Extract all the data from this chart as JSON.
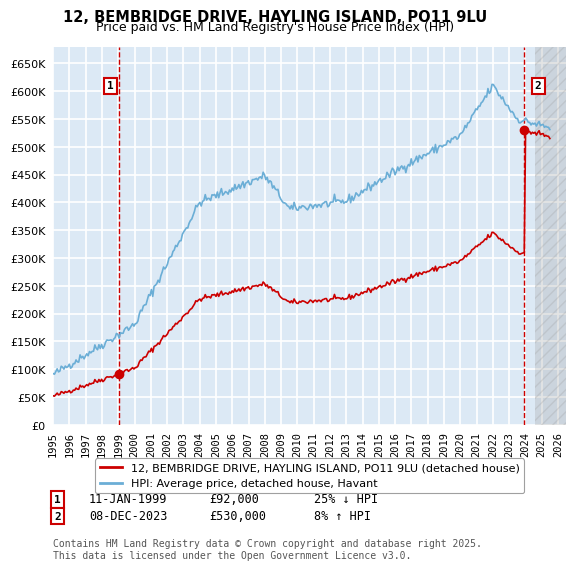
{
  "title_line1": "12, BEMBRIDGE DRIVE, HAYLING ISLAND, PO11 9LU",
  "title_line2": "Price paid vs. HM Land Registry's House Price Index (HPI)",
  "legend_line1": "12, BEMBRIDGE DRIVE, HAYLING ISLAND, PO11 9LU (detached house)",
  "legend_line2": "HPI: Average price, detached house, Havant",
  "annotation_footer": "Contains HM Land Registry data © Crown copyright and database right 2025.\nThis data is licensed under the Open Government Licence v3.0.",
  "sale1_date": "11-JAN-1999",
  "sale1_price": "£92,000",
  "sale1_hpi": "25% ↓ HPI",
  "sale2_date": "08-DEC-2023",
  "sale2_price": "£530,000",
  "sale2_hpi": "8% ↑ HPI",
  "sale1_year": 1999.04,
  "sale1_value": 92000,
  "sale2_year": 2023.93,
  "sale2_value": 530000,
  "hpi_color": "#6baed6",
  "price_color": "#cc0000",
  "plot_bg_color": "#dce9f5",
  "grid_color": "#ffffff",
  "ylim_min": 0,
  "ylim_max": 680000,
  "xmin": 1995,
  "xmax": 2026.5
}
